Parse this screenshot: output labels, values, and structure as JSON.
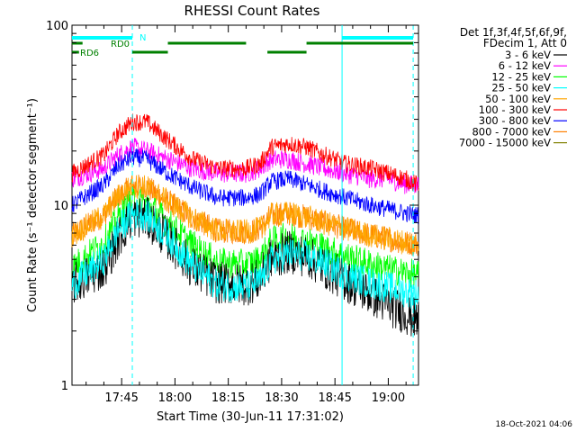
{
  "chart_data": {
    "type": "line",
    "title": "RHESSI Count Rates",
    "xlabel": "Start Time (30-Jun-11 17:31:02)",
    "ylabel": "Count Rate (s⁻¹ detector segment⁻¹)",
    "y_scale": "log",
    "ylim": [
      1,
      100
    ],
    "xlim": [
      "17:31:02",
      "19:08:30"
    ],
    "x_ticks": [
      "17:45",
      "18:00",
      "18:15",
      "18:30",
      "18:45",
      "19:00"
    ],
    "y_ticks": [
      "1",
      "10",
      "100"
    ],
    "legend_header": [
      "Det 1f,3f,4f,5f,6f,9f,",
      "FDecim 1, Att 0"
    ],
    "legend_position": "right",
    "timestamp": "18-Oct-2021 04:06",
    "series": [
      {
        "name": "3 - 6 keV",
        "color": "#000000",
        "x": [
          "17:31",
          "17:40",
          "17:44",
          "17:48",
          "17:52",
          "17:58",
          "18:05",
          "18:12",
          "18:20",
          "18:24",
          "18:27",
          "18:32",
          "18:37",
          "18:42",
          "18:48",
          "18:55",
          "19:00",
          "19:05",
          "19:08"
        ],
        "values": [
          3.6,
          4.5,
          6.5,
          8.7,
          8.5,
          6.5,
          4.5,
          3.7,
          3.6,
          3.9,
          5.0,
          5.5,
          5.2,
          4.5,
          3.8,
          3.2,
          2.8,
          2.5,
          2.3
        ]
      },
      {
        "name": "6 - 12 keV",
        "color": "#ff00ff",
        "x": [
          "17:31",
          "17:40",
          "17:44",
          "17:48",
          "17:52",
          "17:58",
          "18:05",
          "18:12",
          "18:20",
          "18:24",
          "18:27",
          "18:32",
          "18:37",
          "18:42",
          "18:48",
          "18:55",
          "19:00",
          "19:05",
          "19:08"
        ],
        "values": [
          14,
          16,
          19,
          21,
          20,
          18,
          16,
          15,
          15,
          16,
          18,
          18,
          17,
          16,
          15,
          14,
          14,
          13,
          13
        ]
      },
      {
        "name": "12 - 25 keV",
        "color": "#00ff00",
        "x": [
          "17:31",
          "17:40",
          "17:44",
          "17:48",
          "17:52",
          "17:58",
          "18:05",
          "18:12",
          "18:20",
          "18:24",
          "18:27",
          "18:32",
          "18:37",
          "18:42",
          "18:48",
          "18:55",
          "19:00",
          "19:05",
          "19:08"
        ],
        "values": [
          4.5,
          6.2,
          8.5,
          10.5,
          10.2,
          8,
          6,
          4.8,
          4.7,
          5,
          6.3,
          6.7,
          6.3,
          5.8,
          5.2,
          4.7,
          4.4,
          4.2,
          4.1
        ]
      },
      {
        "name": "25 - 50 keV",
        "color": "#00ffff",
        "x": [
          "17:31",
          "17:40",
          "17:44",
          "17:48",
          "17:52",
          "17:58",
          "18:05",
          "18:12",
          "18:20",
          "18:24",
          "18:27",
          "18:32",
          "18:37",
          "18:42",
          "18:48",
          "18:55",
          "19:00",
          "19:05",
          "19:08"
        ],
        "values": [
          3.6,
          5,
          7.3,
          9,
          8.8,
          6.7,
          4.6,
          3.6,
          3.5,
          3.8,
          4.9,
          5.4,
          5.2,
          4.8,
          4.1,
          3.7,
          3.5,
          3.3,
          3.2
        ]
      },
      {
        "name": "50 - 100 keV",
        "color": "#ffa500",
        "x": [
          "17:31",
          "17:40",
          "17:44",
          "17:48",
          "17:52",
          "17:58",
          "18:05",
          "18:12",
          "18:20",
          "18:24",
          "18:27",
          "18:32",
          "18:37",
          "18:42",
          "18:48",
          "18:55",
          "19:00",
          "19:05",
          "19:08"
        ],
        "values": [
          6.8,
          8.8,
          11.2,
          12.8,
          12.6,
          10.5,
          8.5,
          7.2,
          7.1,
          7.4,
          8.8,
          9,
          8.6,
          8,
          7.4,
          6.8,
          6.5,
          6.2,
          6.1
        ]
      },
      {
        "name": "100 - 300 keV",
        "color": "#ff0000",
        "x": [
          "17:31",
          "17:40",
          "17:44",
          "17:48",
          "17:52",
          "17:58",
          "18:05",
          "18:12",
          "18:20",
          "18:24",
          "18:27",
          "18:32",
          "18:37",
          "18:42",
          "18:48",
          "18:55",
          "19:00",
          "19:05",
          "19:08"
        ],
        "values": [
          15,
          19,
          25,
          29,
          29,
          23,
          18,
          16,
          16,
          17,
          21,
          22,
          21,
          19,
          17,
          16,
          15,
          14,
          13
        ]
      },
      {
        "name": "300 - 800 keV",
        "color": "#0000ff",
        "x": [
          "17:31",
          "17:40",
          "17:44",
          "17:48",
          "17:52",
          "17:58",
          "18:05",
          "18:12",
          "18:20",
          "18:24",
          "18:27",
          "18:32",
          "18:37",
          "18:42",
          "18:48",
          "18:55",
          "19:00",
          "19:05",
          "19:08"
        ],
        "values": [
          10,
          13,
          16.5,
          18.5,
          18,
          15,
          12.5,
          11,
          11,
          11.5,
          13.5,
          14,
          13,
          12,
          11,
          10,
          9.5,
          9,
          8.8
        ]
      },
      {
        "name": "800 - 7000 keV",
        "color": "#ff7f00",
        "x": [
          "17:31",
          "17:40",
          "17:44",
          "17:48",
          "17:52",
          "17:58",
          "18:05",
          "18:12",
          "18:20",
          "18:24",
          "18:27",
          "18:32",
          "18:37",
          "18:42",
          "18:48",
          "18:55",
          "19:00",
          "19:05",
          "19:08"
        ],
        "values": [
          6.8,
          8.8,
          11.2,
          12.8,
          12.6,
          10.5,
          8.5,
          7.2,
          7.1,
          7.4,
          8.8,
          9,
          8.6,
          8,
          7.4,
          6.8,
          6.5,
          6.2,
          6.1
        ]
      },
      {
        "name": "7000 - 15000 keV",
        "color": "#808000",
        "x": [
          "17:31",
          "17:40",
          "17:44",
          "17:48",
          "17:52",
          "17:58",
          "18:05",
          "18:12",
          "18:20",
          "18:24",
          "18:27",
          "18:32",
          "18:37",
          "18:42",
          "18:48",
          "18:55",
          "19:00",
          "19:05",
          "19:08"
        ],
        "values": [
          4.5,
          6.2,
          8.5,
          10.5,
          10.2,
          8,
          6,
          4.8,
          4.7,
          5,
          6.3,
          6.7,
          6.3,
          5.8,
          5.2,
          4.7,
          4.4,
          4.2,
          4.1
        ]
      }
    ],
    "attenuator_bars": [
      {
        "label": "N",
        "color": "#00ffff",
        "segments": [
          [
            "17:31",
            "17:48"
          ],
          [
            "18:47",
            "19:07"
          ]
        ]
      },
      {
        "label": "RD0",
        "color": "#008000",
        "segments": [
          [
            "17:31",
            "17:34"
          ],
          [
            "17:58",
            "18:20"
          ],
          [
            "18:37",
            "19:07"
          ]
        ]
      },
      {
        "label": "RD6",
        "color": "#008000",
        "segments": [
          [
            "17:31",
            "17:33"
          ],
          [
            "17:48",
            "17:58"
          ],
          [
            "18:26",
            "18:37"
          ]
        ]
      }
    ],
    "vertical_lines": [
      {
        "time": "17:48",
        "style": "dashed",
        "color": "#00ffff"
      },
      {
        "time": "18:47",
        "style": "solid",
        "color": "#00ffff"
      },
      {
        "time": "19:07",
        "style": "dashed",
        "color": "#00ffff"
      }
    ]
  }
}
